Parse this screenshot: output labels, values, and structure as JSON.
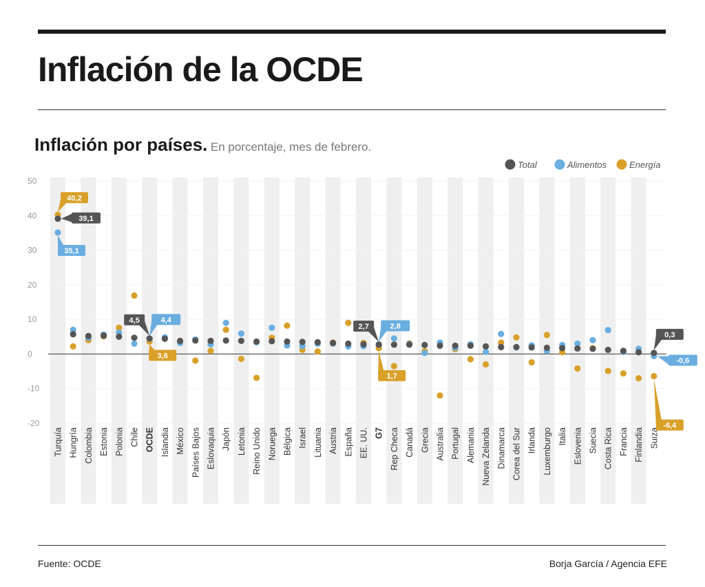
{
  "header": {
    "title": "Inflación de la OCDE",
    "subtitle_bold": "Inflación por países.",
    "subtitle_light": "En porcentaje, mes de febrero."
  },
  "footer": {
    "source": "Fuente: OCDE",
    "credit": "Borja García / Agencia EFE"
  },
  "colors": {
    "total": "#555555",
    "alimentos": "#6aaee0",
    "energia": "#d9a12a",
    "stripe": "#efefef"
  },
  "chart_data": {
    "type": "scatter",
    "title": "Inflación por países.",
    "subtitle": "En porcentaje, mes de febrero.",
    "ylim": [
      -20,
      50
    ],
    "yticks": [
      "50",
      "40",
      "30",
      "20",
      "10",
      "0",
      "-10",
      "-20"
    ],
    "legend": {
      "placement": "top-right",
      "entries": [
        "Total",
        "Alimentos",
        "Energía"
      ]
    },
    "categories": [
      "Turquía",
      "Hungría",
      "Colombia",
      "Estonia",
      "Polonia",
      "Chile",
      "OCDE",
      "Islandia",
      "México",
      "Países Bajos",
      "Eslovaquia",
      "Japón",
      "Letonia",
      "Reino Unido",
      "Noruega",
      "Bélgica",
      "Israel",
      "Lituania",
      "Austria",
      "España",
      "EE. UU.",
      "G7",
      "Rep Checa",
      "Canadá",
      "Grecia",
      "Australia",
      "Portugal",
      "Alemania",
      "Nueva Zelanda",
      "Dinamarca",
      "Corea del Sur",
      "Irlanda",
      "Luxemburgo",
      "Italia",
      "Eslovenia",
      "Suecia",
      "Costa Rica",
      "Francia",
      "Finlandia",
      "Suiza"
    ],
    "bold_categories": [
      "OCDE",
      "G7"
    ],
    "series": [
      {
        "name": "Total",
        "values": [
          39.1,
          5.7,
          5.2,
          5.3,
          5.0,
          4.7,
          4.5,
          4.4,
          3.8,
          3.9,
          3.8,
          3.9,
          3.8,
          3.6,
          3.7,
          3.6,
          3.5,
          3.4,
          3.2,
          3.0,
          2.8,
          2.7,
          2.7,
          2.7,
          2.6,
          2.4,
          2.4,
          2.4,
          2.2,
          2.0,
          2.0,
          1.9,
          1.8,
          1.7,
          1.6,
          1.5,
          1.2,
          0.9,
          0.5,
          0.3
        ]
      },
      {
        "name": "Alimentos",
        "values": [
          35.1,
          7.0,
          4.7,
          5.6,
          6.2,
          3.0,
          4.4,
          4.8,
          3.2,
          4.2,
          2.8,
          9.0,
          5.9,
          3.4,
          7.6,
          2.5,
          2.3,
          3.0,
          3.0,
          2.2,
          2.3,
          2.8,
          4.5,
          2.9,
          0.3,
          3.3,
          1.8,
          2.8,
          0.6,
          5.8,
          1.9,
          2.5,
          0.9,
          2.6,
          3.0,
          4.0,
          6.9,
          0.6,
          1.5,
          -0.6
        ]
      },
      {
        "name": "Energía",
        "values": [
          40.2,
          2.2,
          4.0,
          5.1,
          7.6,
          16.9,
          3.6,
          4.6,
          3.6,
          -1.9,
          0.9,
          7.0,
          -1.4,
          -6.9,
          4.7,
          8.2,
          1.2,
          0.7,
          3.3,
          9.0,
          3.2,
          1.7,
          -3.5,
          3.1,
          0.8,
          -12.0,
          1.4,
          -1.5,
          -3.0,
          3.3,
          4.8,
          -2.4,
          5.5,
          0.5,
          -4.2,
          1.7,
          -4.9,
          -5.6,
          -7.0,
          -6.4
        ]
      }
    ],
    "annotations": [
      {
        "category": "Turquía",
        "series": "Energía",
        "label": "40,2"
      },
      {
        "category": "Turquía",
        "series": "Total",
        "label": "39,1"
      },
      {
        "category": "Turquía",
        "series": "Alimentos",
        "label": "35,1"
      },
      {
        "category": "OCDE",
        "series": "Total",
        "label": "4,5"
      },
      {
        "category": "OCDE",
        "series": "Alimentos",
        "label": "4,4"
      },
      {
        "category": "OCDE",
        "series": "Energía",
        "label": "3,6"
      },
      {
        "category": "G7",
        "series": "Total",
        "label": "2,7"
      },
      {
        "category": "G7",
        "series": "Alimentos",
        "label": "2,8"
      },
      {
        "category": "G7",
        "series": "Energía",
        "label": "1,7"
      },
      {
        "category": "Suiza",
        "series": "Total",
        "label": "0,3"
      },
      {
        "category": "Suiza",
        "series": "Alimentos",
        "label": "-0,6"
      },
      {
        "category": "Suiza",
        "series": "Energía",
        "label": "-6,4"
      }
    ]
  }
}
